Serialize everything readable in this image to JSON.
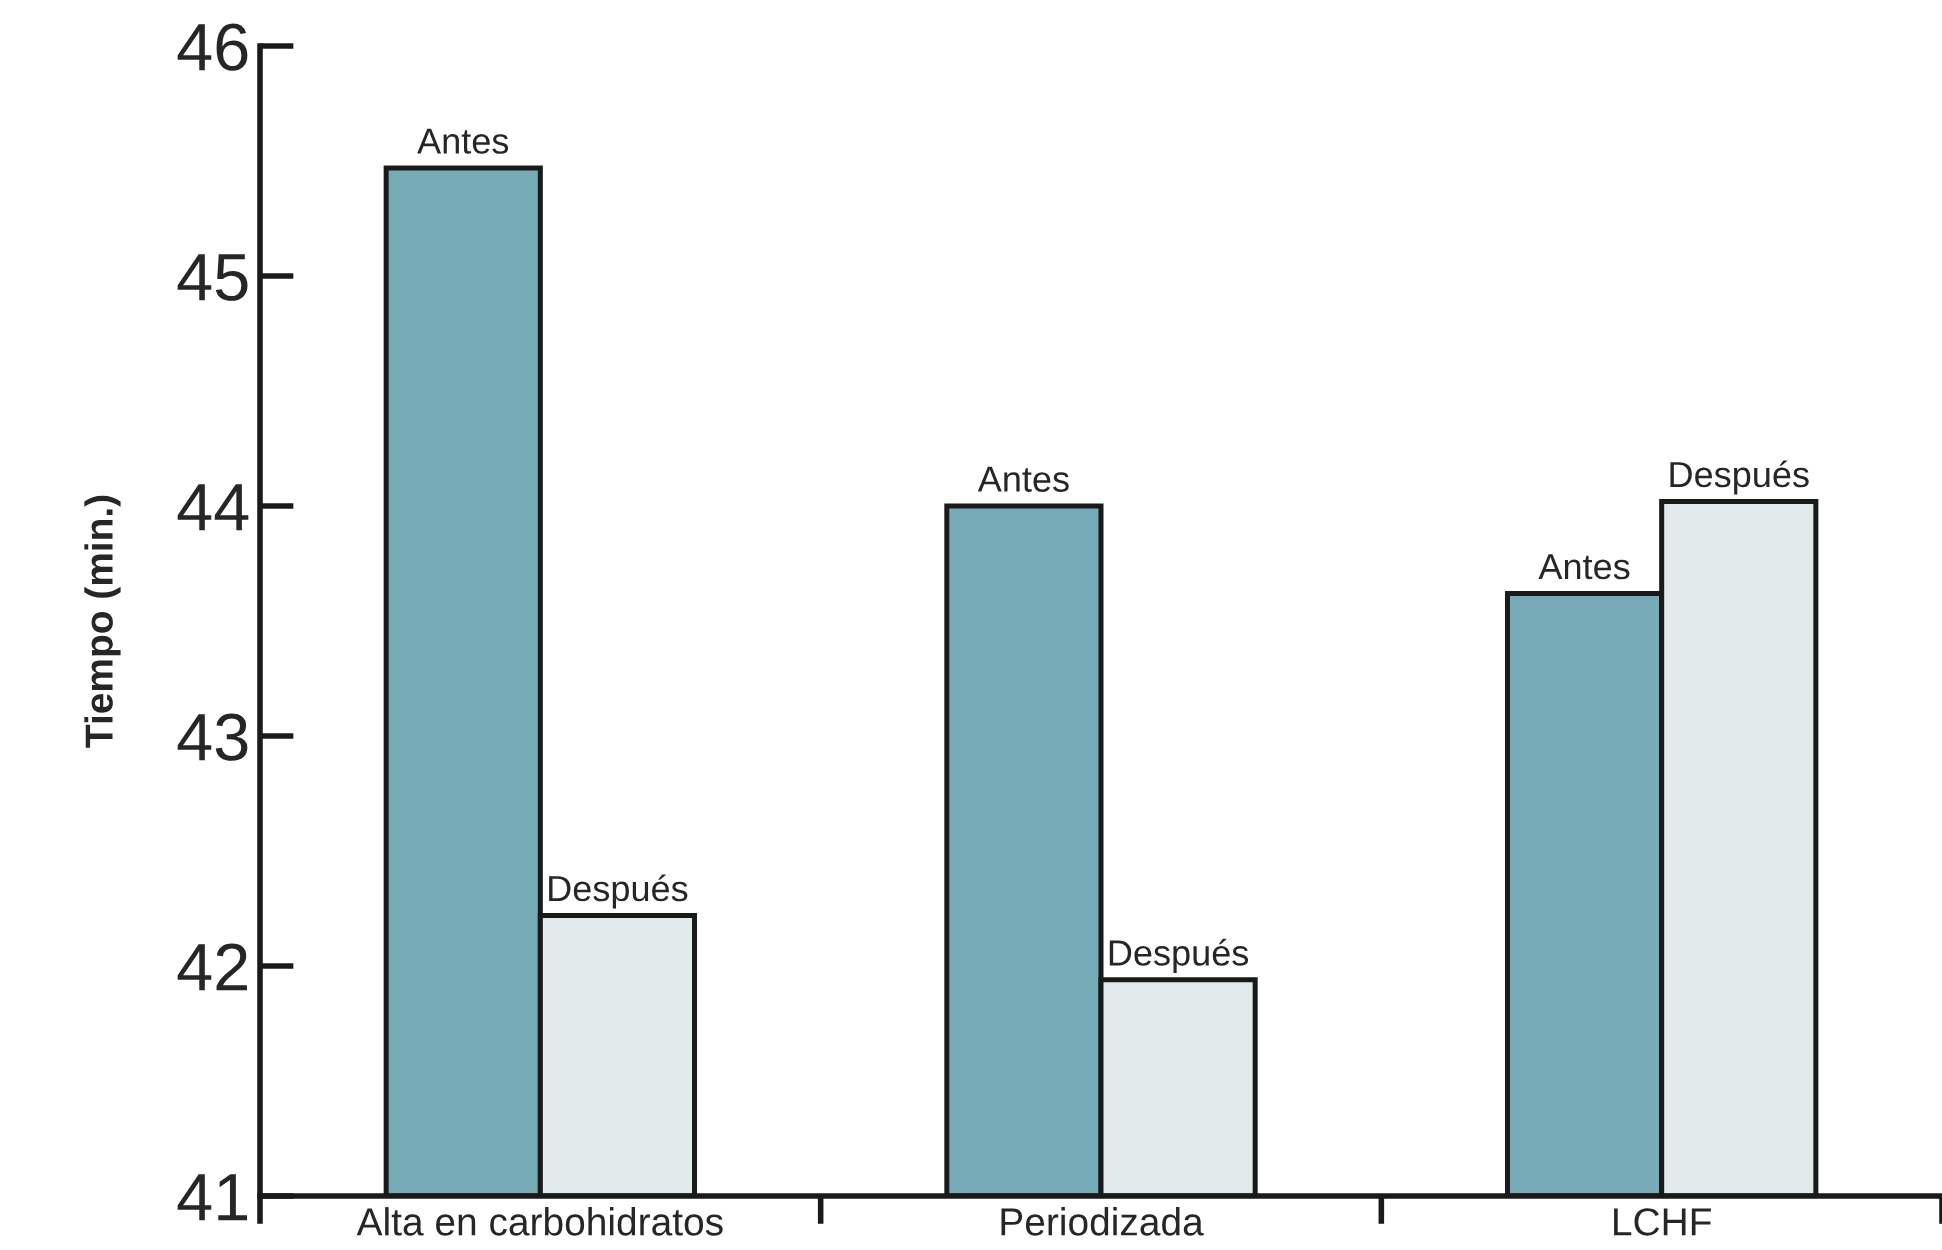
{
  "chart_data": {
    "type": "bar",
    "ylabel": "Tiempo (min.)",
    "categories": [
      "Alta en carbohidratos",
      "Periodizada",
      "LCHF"
    ],
    "series": [
      {
        "name": "Antes",
        "color": "#77aab7",
        "values": [
          45.47,
          44.0,
          43.62
        ]
      },
      {
        "name": "Después",
        "color": "#e0eaea",
        "values": [
          42.22,
          41.94,
          44.02
        ]
      }
    ],
    "ylim": [
      41,
      46
    ],
    "yticks": [
      41,
      42,
      43,
      44,
      45,
      46
    ],
    "grid": false,
    "legend": false
  }
}
